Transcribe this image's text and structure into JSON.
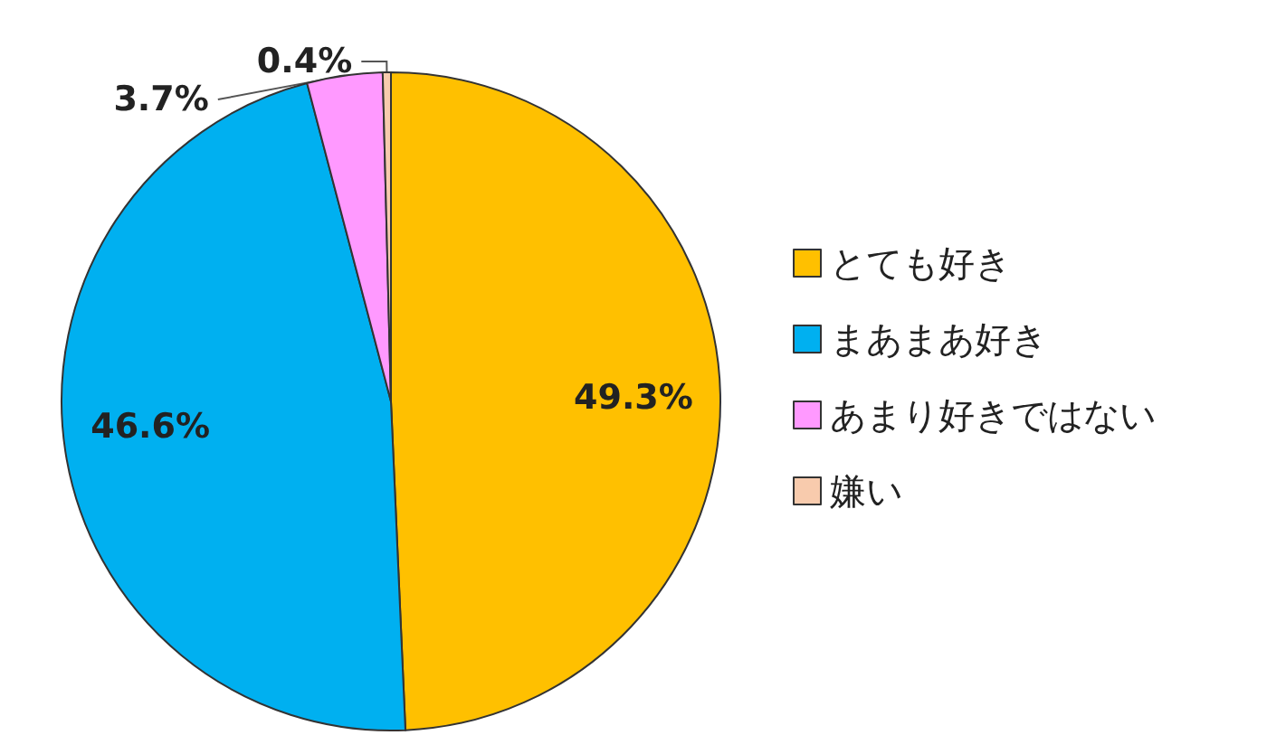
{
  "chart_data": {
    "type": "pie",
    "categories": [
      "とても好き",
      "まあまあ好き",
      "あまり好きではない",
      "嫌い"
    ],
    "values": [
      49.3,
      46.6,
      3.7,
      0.4
    ],
    "value_labels": [
      "49.3%",
      "46.6%",
      "3.7%",
      "0.4%"
    ],
    "colors": [
      "#ffc000",
      "#00b0f0",
      "#ff99ff",
      "#f8cbad"
    ],
    "legend": "right"
  }
}
